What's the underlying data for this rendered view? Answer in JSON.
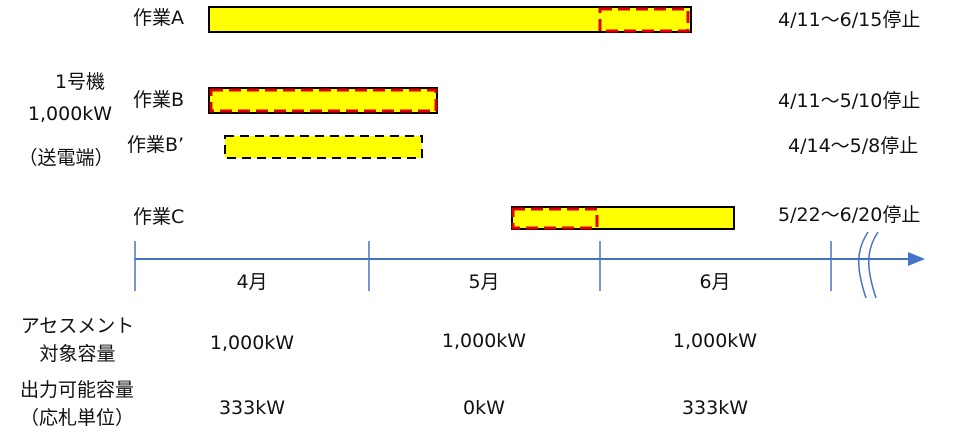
{
  "colors": {
    "bar_fill": "#FFFF00",
    "bar_border": "#000000",
    "dashed_red": "#E00000",
    "axis": "#4472C4"
  },
  "unit_label": {
    "line1": "1号機",
    "line2": "1,000kW",
    "line3": "（送電端）"
  },
  "tasks": [
    {
      "name": "作業A",
      "period": "4/11～6/15停止"
    },
    {
      "name": "作業B",
      "period": "4/11～5/10停止"
    },
    {
      "name": "作業B’",
      "period": "4/14～5/8停止"
    },
    {
      "name": "作業C",
      "period": "5/22～6/20停止"
    }
  ],
  "months": [
    "4月",
    "5月",
    "6月"
  ],
  "rows": {
    "assessment": {
      "label_line1": "アセスメント",
      "label_line2": "対象容量",
      "values": [
        "1,000kW",
        "1,000kW",
        "1,000kW"
      ]
    },
    "output": {
      "label_line1": "出力可能容量",
      "label_line2": "（応札単位）",
      "values": [
        "333kW",
        "0kW",
        "333kW"
      ]
    }
  }
}
